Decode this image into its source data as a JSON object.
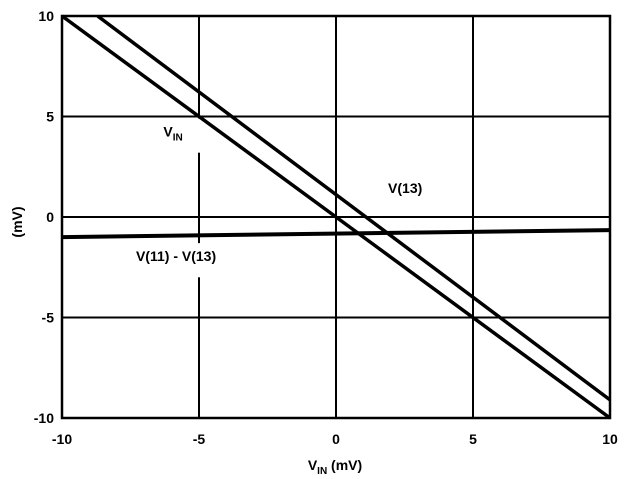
{
  "chart_data": {
    "type": "line",
    "xlabel": {
      "main": "V",
      "sub": "IN",
      "unit": " (mV)"
    },
    "ylabel": "(mV)",
    "xlim": [
      -10,
      10
    ],
    "ylim": [
      -10,
      10
    ],
    "xticks": [
      -10,
      -5,
      0,
      5,
      10
    ],
    "yticks": [
      -10,
      -5,
      0,
      5,
      10
    ],
    "xtick_labels": [
      "-10",
      "-5",
      "0",
      "5",
      "10"
    ],
    "ytick_labels": [
      "-10",
      "-5",
      "0",
      "5",
      "10"
    ],
    "grid": true,
    "series": [
      {
        "name": "V(IN)",
        "x": [
          -10,
          10
        ],
        "y": [
          10,
          -10
        ]
      },
      {
        "name": "V(13)",
        "x": [
          -8.7,
          10
        ],
        "y": [
          10,
          -9.1
        ]
      },
      {
        "name": "V(11) - V(13)",
        "x": [
          -10,
          10
        ],
        "y": [
          -1.0,
          -0.65
        ]
      }
    ],
    "annotations": {
      "vin": {
        "main": "V",
        "sub": "IN",
        "x": -6.3,
        "y": 4.0
      },
      "v13": {
        "text": "V(13)",
        "x": 1.9,
        "y": 1.2
      },
      "v11v13": {
        "text": "V(11) - V(13)",
        "x": -7.3,
        "y": -2.2
      }
    }
  }
}
